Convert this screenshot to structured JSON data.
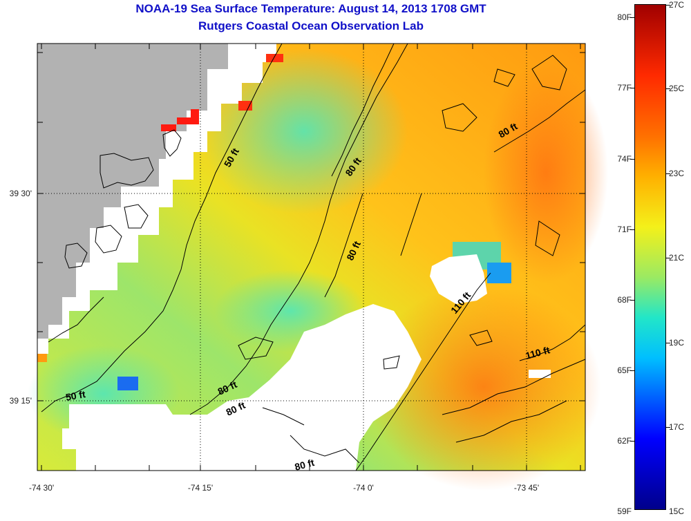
{
  "title": {
    "line1": "NOAA-19 Sea Surface Temperature:  August 14, 2013 1708 GMT",
    "line2": "Rutgers Coastal Ocean Observation Lab"
  },
  "axes": {
    "lat_labels": [
      "39 30'",
      "39 15'"
    ],
    "lon_labels": [
      "-74 30'",
      "-74 15'",
      "-74 0'",
      "-73 45'"
    ]
  },
  "contours": [
    "50 ft",
    "80 ft",
    "80 ft",
    "80 ft",
    "80 ft",
    "50 ft",
    "80 ft",
    "80 ft",
    "110 ft",
    "110 ft"
  ],
  "colorbar": {
    "fahrenheit": [
      "80F",
      "77F",
      "74F",
      "71F",
      "68F",
      "65F",
      "62F",
      "59F"
    ],
    "celsius": [
      "27C",
      "25C",
      "23C",
      "21C",
      "19C",
      "17C",
      "15C"
    ]
  },
  "colors": {
    "land": "#b2b2b2",
    "no_data": "#ffffff",
    "title": "#1010c8"
  }
}
